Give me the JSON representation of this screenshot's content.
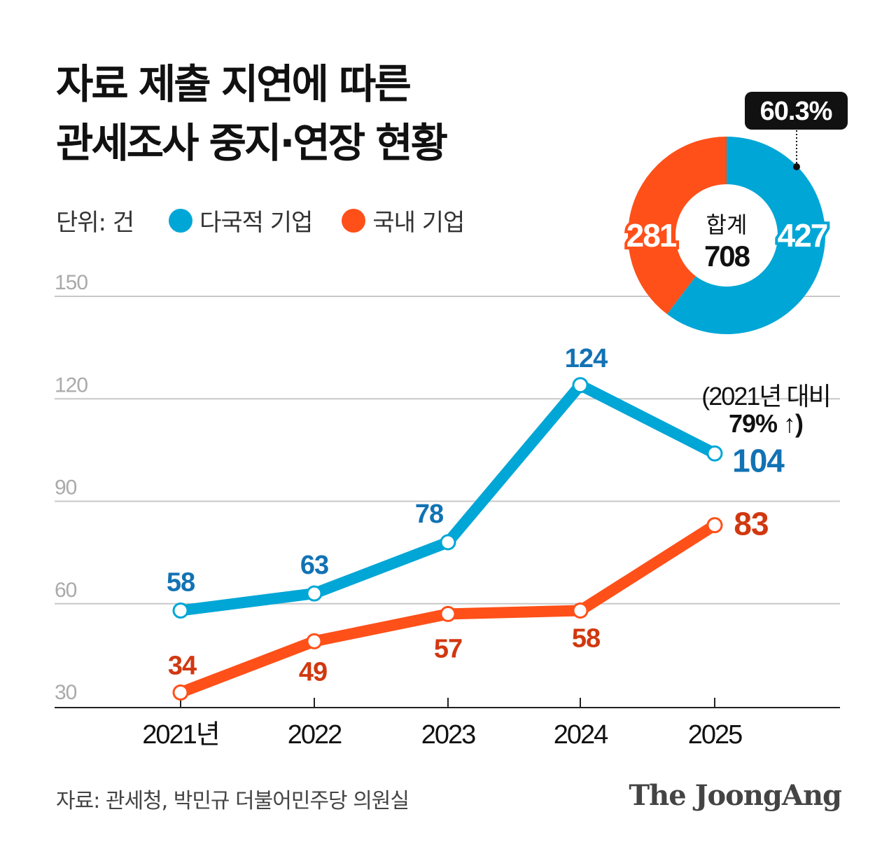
{
  "title_line1": "자료 제출 지연에 따른",
  "title_line2": "관세조사 중지·연장 현황",
  "unit": "단위: 건",
  "source": "자료: 관세청, 박민규 더불어민주당 의원실",
  "logo": "The JoongAng",
  "chart_data": [
    {
      "type": "line",
      "categories": [
        "2021년",
        "2022",
        "2023",
        "2024",
        "2025"
      ],
      "ylim": [
        30,
        150
      ],
      "yticks": [
        30,
        60,
        90,
        120,
        150
      ],
      "grid": true,
      "legend": "top-left",
      "series": [
        {
          "name": "다국적 기업",
          "color": "#00a6d6",
          "label_color": "#1272b4",
          "values": [
            58,
            63,
            78,
            124,
            104
          ]
        },
        {
          "name": "국내 기업",
          "color": "#ff5019",
          "label_color": "#d1380f",
          "values": [
            34,
            49,
            57,
            58,
            83
          ]
        }
      ],
      "annotation": {
        "line1": "(2021년 대비",
        "line2": "79% ↑)"
      }
    },
    {
      "type": "pie",
      "donut": true,
      "center_label": "합계",
      "total": 708,
      "slices": [
        {
          "name": "다국적 기업",
          "value": 427,
          "color": "#00a6d6"
        },
        {
          "name": "국내 기업",
          "value": 281,
          "color": "#ff5019"
        }
      ],
      "callout": "60.3%"
    }
  ]
}
